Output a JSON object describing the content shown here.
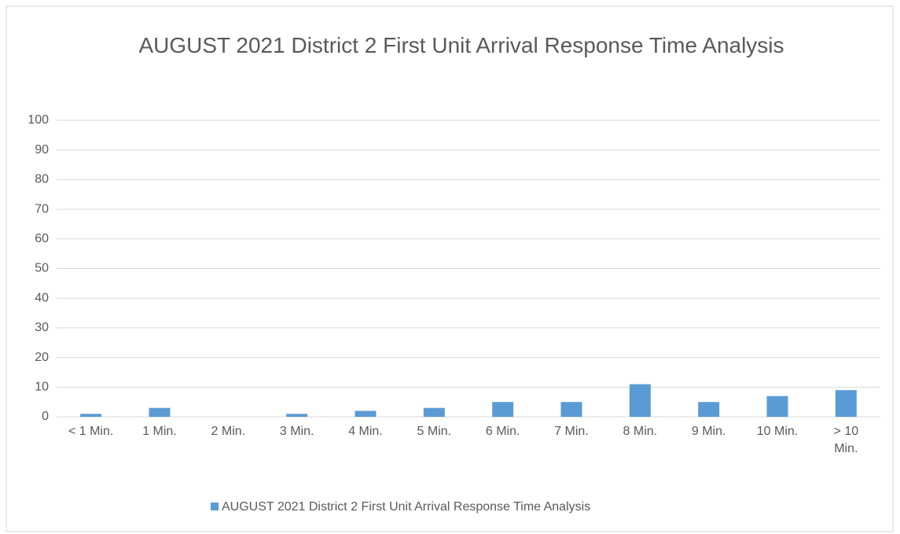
{
  "chart_data": {
    "type": "bar",
    "title": "AUGUST 2021 District 2 First Unit Arrival Response Time Analysis",
    "categories": [
      "< 1 Min.",
      "1 Min.",
      "2 Min.",
      "3 Min.",
      "4 Min.",
      "5 Min.",
      "6 Min.",
      "7 Min.",
      "8 Min.",
      "9 Min.",
      "10 Min.",
      "> 10 Min."
    ],
    "series": [
      {
        "name": "AUGUST 2021 District 2 First Unit Arrival Response Time Analysis",
        "color": "#5b9bd5",
        "values": [
          1,
          3,
          0,
          1,
          2,
          3,
          5,
          5,
          11,
          5,
          7,
          9
        ]
      }
    ],
    "ylim": [
      0,
      100
    ],
    "yticks": [
      0,
      10,
      20,
      30,
      40,
      50,
      60,
      70,
      80,
      90,
      100
    ],
    "grid": true,
    "legend": "bottom"
  }
}
